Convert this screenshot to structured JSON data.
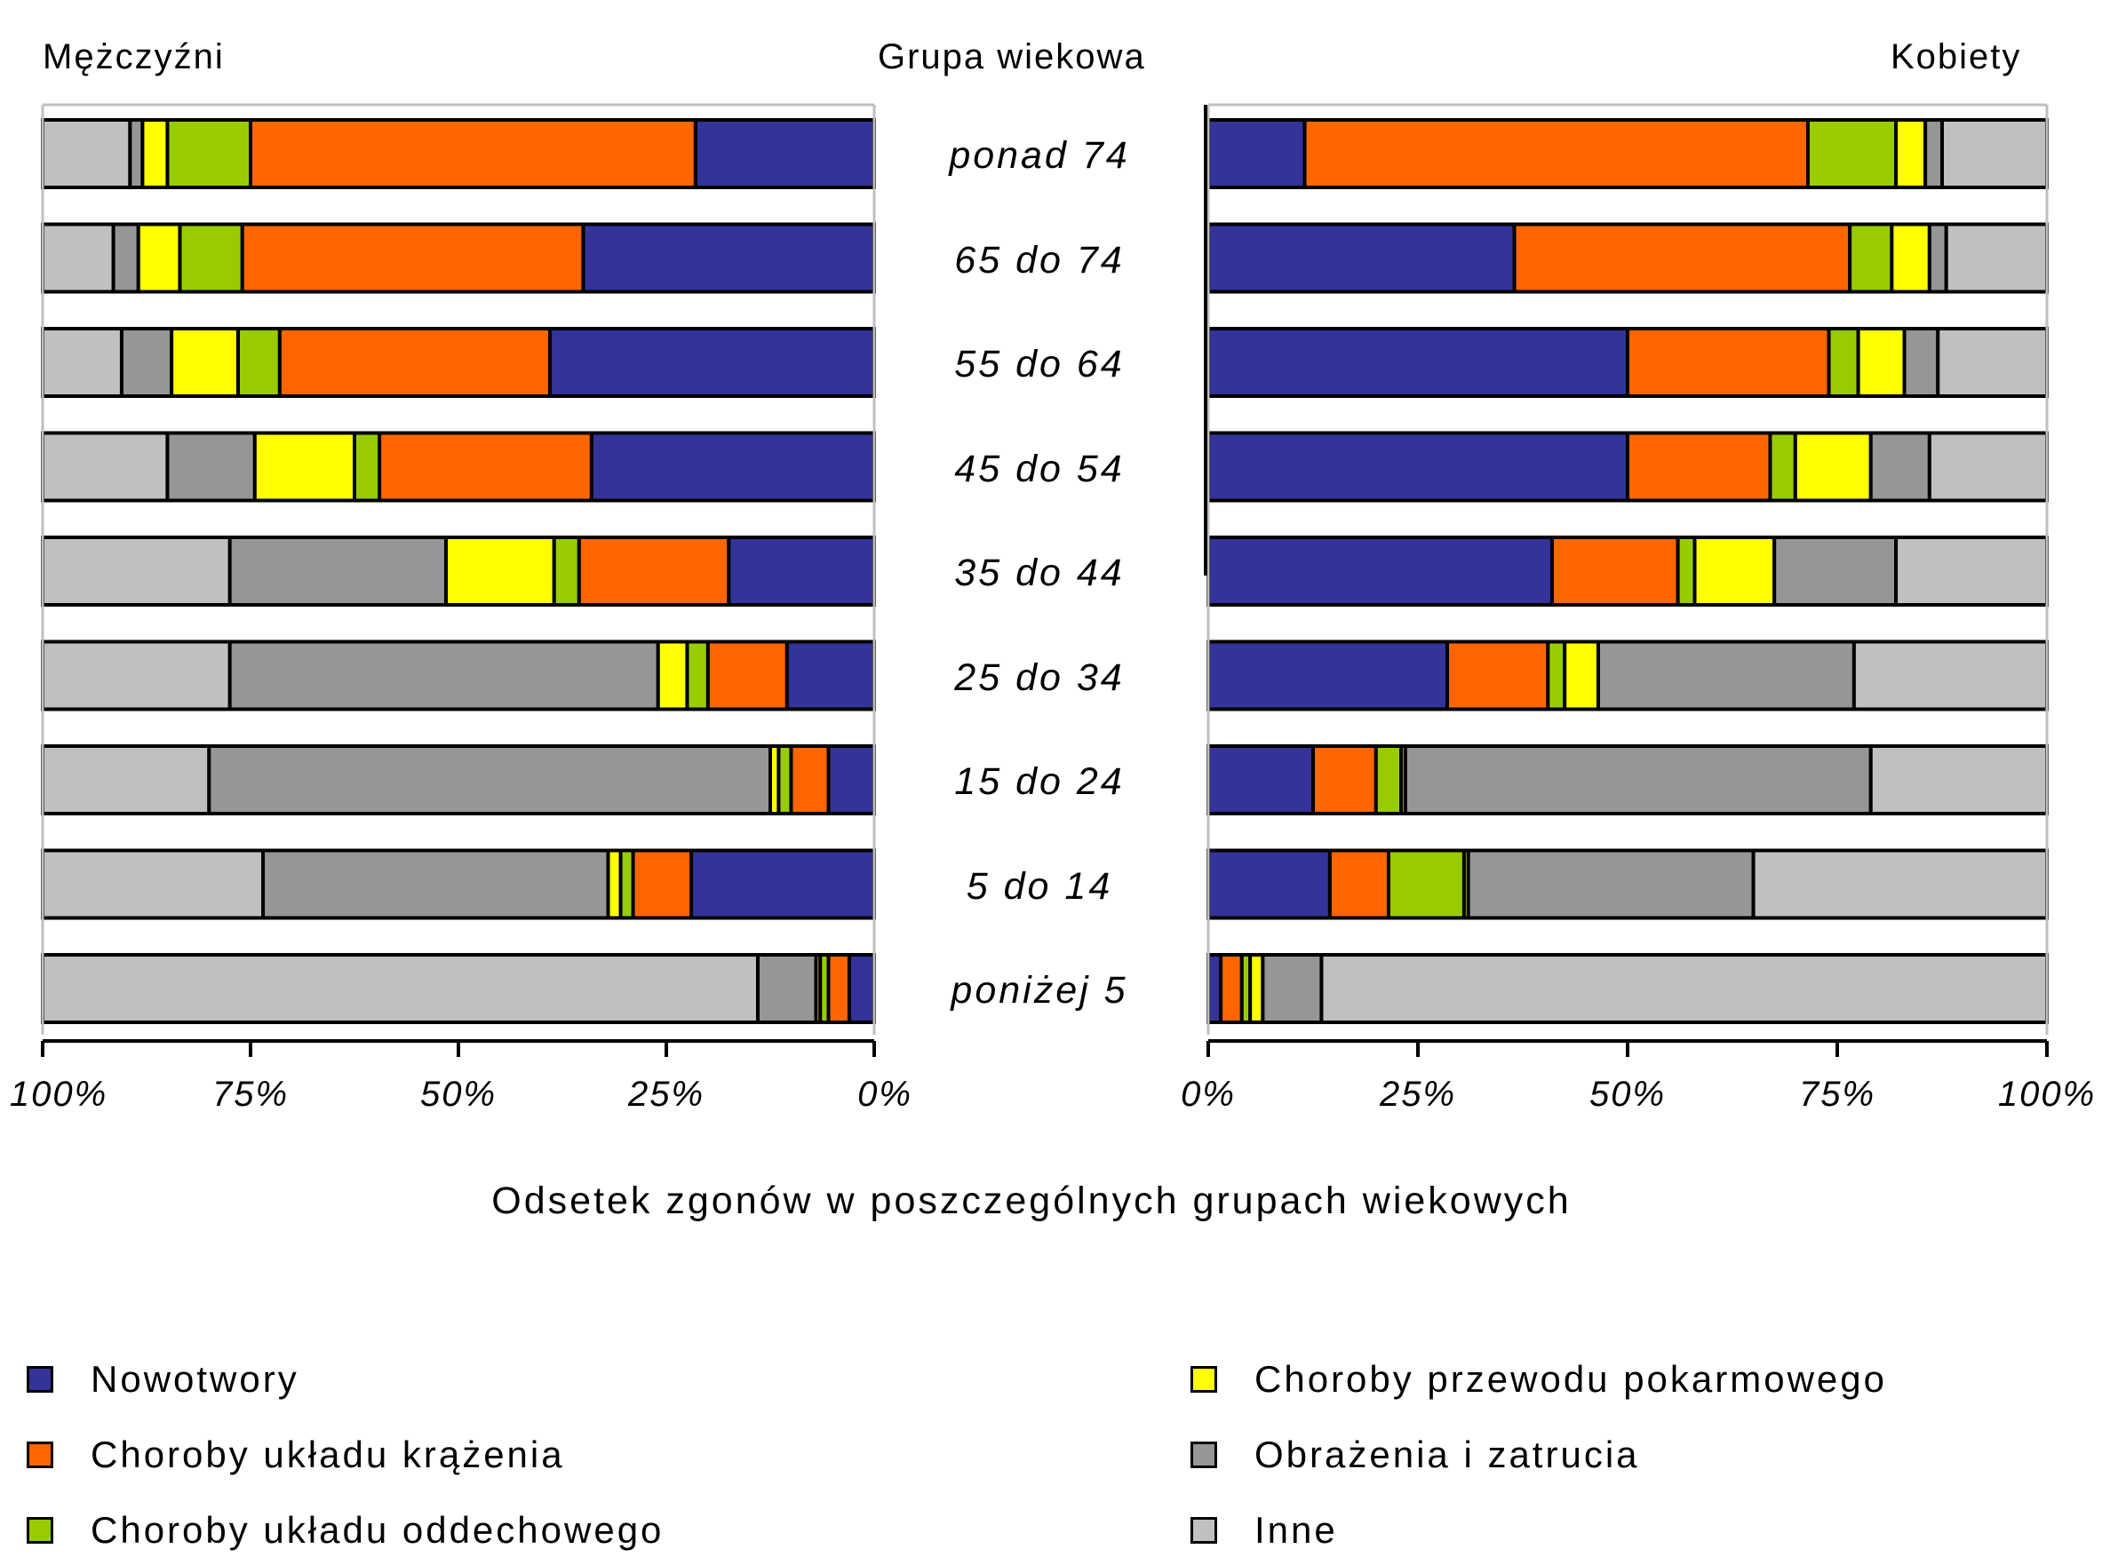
{
  "headers": {
    "left": "Mężczyźni",
    "center": "Grupa wiekowa",
    "right": "Kobiety"
  },
  "xlabel": "Odsetek zgonów w poszczególnych grupach wiekowych",
  "left_ticks": [
    "100%",
    "75%",
    "50%",
    "25%",
    "0%"
  ],
  "right_ticks": [
    "0%",
    "25%",
    "50%",
    "75%",
    "100%"
  ],
  "age_groups": [
    "ponad 74",
    "65 do 74",
    "55 do 64",
    "45 do 54",
    "35 do 44",
    "25 do 34",
    "15 do 24",
    "5 do 14",
    "poniżej 5"
  ],
  "legend": [
    {
      "label": "Nowotwory",
      "color": "#333399"
    },
    {
      "label": "Choroby układu krążenia",
      "color": "#FF6600"
    },
    {
      "label": "Choroby układu oddechowego",
      "color": "#99CC00"
    },
    {
      "label": "Choroby przewodu pokarmowego",
      "color": "#FFFF00"
    },
    {
      "label": "Obrażenia i zatrucia",
      "color": "#969696"
    },
    {
      "label": "Inne",
      "color": "#C0C0C0"
    }
  ],
  "chart_data": {
    "type": "bar",
    "orientation": "horizontal",
    "stacked": true,
    "normalized": true,
    "xlim": [
      0,
      100
    ],
    "categories": [
      "ponad 74",
      "65 do 74",
      "55 do 64",
      "45 do 54",
      "35 do 44",
      "25 do 34",
      "15 do 24",
      "5 do 14",
      "poniżej 5"
    ],
    "panels": [
      {
        "name": "Mężczyźni",
        "direction": "right-to-left",
        "series": [
          {
            "name": "Nowotwory",
            "values": [
              21.5,
              35.0,
              39.0,
              34.0,
              17.5,
              10.5,
              5.5,
              22.0,
              3.0
            ]
          },
          {
            "name": "Choroby układu krążenia",
            "values": [
              53.5,
              41.0,
              32.5,
              25.5,
              18.0,
              9.5,
              4.5,
              7.0,
              2.5
            ]
          },
          {
            "name": "Choroby układu oddechowego",
            "values": [
              10.0,
              7.5,
              5.0,
              3.0,
              3.0,
              2.5,
              1.5,
              1.5,
              1.0
            ]
          },
          {
            "name": "Choroby przewodu pokarmowego",
            "values": [
              3.0,
              5.0,
              8.0,
              12.0,
              13.0,
              3.5,
              1.0,
              1.5,
              0.5
            ]
          },
          {
            "name": "Obrażenia i zatrucia",
            "values": [
              1.5,
              3.0,
              6.0,
              10.5,
              26.0,
              51.5,
              67.5,
              41.5,
              7.0
            ]
          },
          {
            "name": "Inne",
            "values": [
              10.5,
              8.5,
              9.5,
              15.0,
              22.5,
              22.5,
              20.0,
              26.5,
              86.0
            ]
          }
        ]
      },
      {
        "name": "Kobiety",
        "direction": "left-to-right",
        "series": [
          {
            "name": "Nowotwory",
            "values": [
              11.5,
              36.5,
              50.0,
              50.0,
              41.0,
              28.5,
              12.5,
              14.5,
              1.5
            ]
          },
          {
            "name": "Choroby układu krążenia",
            "values": [
              60.0,
              40.0,
              24.0,
              17.0,
              15.0,
              12.0,
              7.5,
              7.0,
              2.5
            ]
          },
          {
            "name": "Choroby układu oddechowego",
            "values": [
              10.5,
              5.0,
              3.5,
              3.0,
              2.0,
              2.0,
              3.0,
              9.0,
              1.0
            ]
          },
          {
            "name": "Choroby przewodu pokarmowego",
            "values": [
              3.5,
              4.5,
              5.5,
              9.0,
              9.5,
              4.0,
              0.5,
              0.5,
              1.5
            ]
          },
          {
            "name": "Obrażenia i zatrucia",
            "values": [
              2.0,
              2.0,
              4.0,
              7.0,
              14.5,
              30.5,
              55.5,
              34.0,
              7.0
            ]
          },
          {
            "name": "Inne",
            "values": [
              12.5,
              12.0,
              13.0,
              14.0,
              18.0,
              23.0,
              21.0,
              35.0,
              86.5
            ]
          }
        ]
      }
    ]
  }
}
